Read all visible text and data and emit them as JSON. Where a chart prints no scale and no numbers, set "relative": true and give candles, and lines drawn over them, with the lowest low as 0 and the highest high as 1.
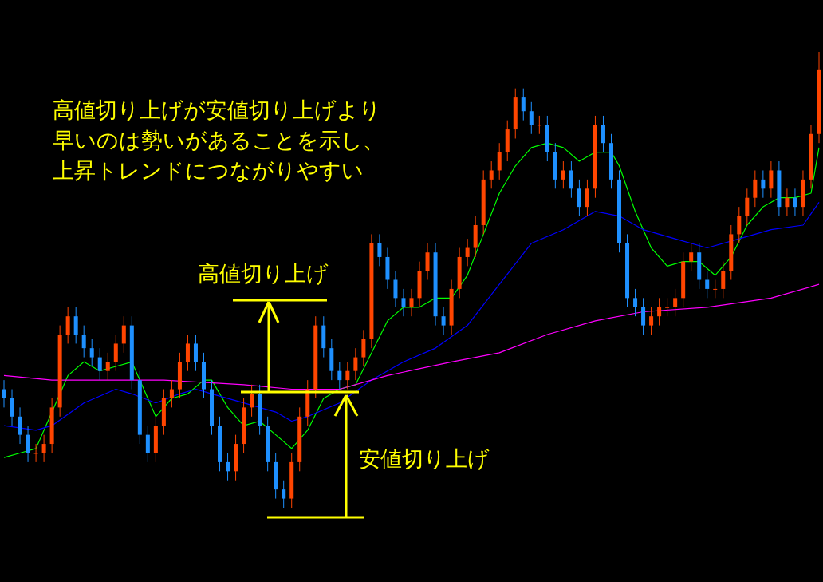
{
  "chart_data": {
    "type": "candlestick",
    "relative": true,
    "categories": [
      null,
      null,
      null,
      null,
      null,
      null,
      null,
      null,
      null,
      null,
      null,
      null,
      null,
      null,
      null,
      null,
      null,
      null,
      null,
      null,
      null,
      null,
      null,
      null,
      null,
      null,
      null,
      null,
      null,
      null,
      null,
      null,
      null,
      null,
      null,
      null,
      null,
      null,
      null,
      null,
      null,
      null,
      null,
      null,
      null,
      null,
      null,
      null,
      null,
      null,
      null,
      null,
      null,
      null,
      null,
      null,
      null,
      null,
      null,
      null,
      null,
      null,
      null,
      null,
      null,
      null,
      null,
      null,
      null,
      null,
      null,
      null,
      null,
      null,
      null,
      null,
      null,
      null,
      null,
      null,
      null,
      null,
      null,
      null,
      null,
      null,
      null,
      null,
      null,
      null,
      null,
      null,
      null,
      null,
      null,
      null,
      null,
      null,
      null,
      null,
      null,
      null,
      null
    ],
    "ohlc": [
      [
        0.26,
        0.28,
        0.22,
        0.24
      ],
      [
        0.24,
        0.26,
        0.18,
        0.2
      ],
      [
        0.2,
        0.22,
        0.14,
        0.16
      ],
      [
        0.16,
        0.18,
        0.1,
        0.12
      ],
      [
        0.12,
        0.14,
        0.1,
        0.12
      ],
      [
        0.12,
        0.16,
        0.1,
        0.14
      ],
      [
        0.14,
        0.24,
        0.12,
        0.22
      ],
      [
        0.22,
        0.4,
        0.2,
        0.38
      ],
      [
        0.38,
        0.44,
        0.36,
        0.42
      ],
      [
        0.42,
        0.44,
        0.36,
        0.38
      ],
      [
        0.38,
        0.4,
        0.33,
        0.35
      ],
      [
        0.35,
        0.37,
        0.31,
        0.33
      ],
      [
        0.33,
        0.35,
        0.28,
        0.3
      ],
      [
        0.3,
        0.34,
        0.28,
        0.32
      ],
      [
        0.32,
        0.38,
        0.3,
        0.36
      ],
      [
        0.36,
        0.42,
        0.34,
        0.4
      ],
      [
        0.4,
        0.42,
        0.26,
        0.28
      ],
      [
        0.28,
        0.3,
        0.14,
        0.16
      ],
      [
        0.16,
        0.18,
        0.1,
        0.12
      ],
      [
        0.12,
        0.2,
        0.1,
        0.18
      ],
      [
        0.18,
        0.26,
        0.16,
        0.24
      ],
      [
        0.24,
        0.28,
        0.22,
        0.26
      ],
      [
        0.26,
        0.34,
        0.24,
        0.32
      ],
      [
        0.32,
        0.38,
        0.3,
        0.36
      ],
      [
        0.36,
        0.38,
        0.3,
        0.32
      ],
      [
        0.32,
        0.34,
        0.24,
        0.26
      ],
      [
        0.26,
        0.28,
        0.16,
        0.18
      ],
      [
        0.18,
        0.2,
        0.08,
        0.1
      ],
      [
        0.1,
        0.12,
        0.06,
        0.08
      ],
      [
        0.08,
        0.16,
        0.06,
        0.14
      ],
      [
        0.14,
        0.24,
        0.12,
        0.22
      ],
      [
        0.22,
        0.27,
        0.2,
        0.25
      ],
      [
        0.25,
        0.27,
        0.16,
        0.18
      ],
      [
        0.18,
        0.2,
        0.08,
        0.1
      ],
      [
        0.1,
        0.12,
        0.02,
        0.04
      ],
      [
        0.04,
        0.06,
        0.0,
        0.02
      ],
      [
        0.02,
        0.12,
        0.0,
        0.1
      ],
      [
        0.1,
        0.22,
        0.08,
        0.2
      ],
      [
        0.2,
        0.28,
        0.18,
        0.26
      ],
      [
        0.26,
        0.42,
        0.24,
        0.4
      ],
      [
        0.4,
        0.42,
        0.33,
        0.35
      ],
      [
        0.35,
        0.37,
        0.28,
        0.3
      ],
      [
        0.3,
        0.32,
        0.26,
        0.28
      ],
      [
        0.28,
        0.32,
        0.26,
        0.3
      ],
      [
        0.3,
        0.35,
        0.28,
        0.33
      ],
      [
        0.33,
        0.39,
        0.31,
        0.37
      ],
      [
        0.37,
        0.6,
        0.35,
        0.58
      ],
      [
        0.58,
        0.6,
        0.53,
        0.55
      ],
      [
        0.55,
        0.57,
        0.48,
        0.5
      ],
      [
        0.5,
        0.52,
        0.44,
        0.46
      ],
      [
        0.46,
        0.48,
        0.42,
        0.44
      ],
      [
        0.44,
        0.48,
        0.42,
        0.46
      ],
      [
        0.46,
        0.54,
        0.44,
        0.52
      ],
      [
        0.52,
        0.58,
        0.5,
        0.56
      ],
      [
        0.56,
        0.58,
        0.4,
        0.42
      ],
      [
        0.42,
        0.44,
        0.38,
        0.4
      ],
      [
        0.4,
        0.5,
        0.38,
        0.48
      ],
      [
        0.48,
        0.57,
        0.46,
        0.55
      ],
      [
        0.55,
        0.59,
        0.53,
        0.57
      ],
      [
        0.57,
        0.64,
        0.55,
        0.62
      ],
      [
        0.62,
        0.74,
        0.6,
        0.72
      ],
      [
        0.72,
        0.76,
        0.7,
        0.74
      ],
      [
        0.74,
        0.8,
        0.72,
        0.78
      ],
      [
        0.78,
        0.85,
        0.76,
        0.83
      ],
      [
        0.83,
        0.92,
        0.81,
        0.9
      ],
      [
        0.9,
        0.92,
        0.85,
        0.87
      ],
      [
        0.87,
        0.89,
        0.82,
        0.84
      ],
      [
        0.84,
        0.86,
        0.82,
        0.84
      ],
      [
        0.84,
        0.86,
        0.76,
        0.78
      ],
      [
        0.78,
        0.8,
        0.7,
        0.72
      ],
      [
        0.72,
        0.76,
        0.7,
        0.74
      ],
      [
        0.74,
        0.76,
        0.68,
        0.7
      ],
      [
        0.7,
        0.72,
        0.64,
        0.66
      ],
      [
        0.66,
        0.72,
        0.64,
        0.7
      ],
      [
        0.7,
        0.86,
        0.68,
        0.84
      ],
      [
        0.84,
        0.86,
        0.78,
        0.8
      ],
      [
        0.8,
        0.82,
        0.7,
        0.72
      ],
      [
        0.72,
        0.74,
        0.56,
        0.58
      ],
      [
        0.58,
        0.6,
        0.44,
        0.46
      ],
      [
        0.46,
        0.48,
        0.42,
        0.44
      ],
      [
        0.44,
        0.46,
        0.38,
        0.4
      ],
      [
        0.4,
        0.44,
        0.38,
        0.42
      ],
      [
        0.42,
        0.46,
        0.4,
        0.44
      ],
      [
        0.44,
        0.46,
        0.42,
        0.44
      ],
      [
        0.44,
        0.48,
        0.42,
        0.46
      ],
      [
        0.46,
        0.56,
        0.44,
        0.54
      ],
      [
        0.54,
        0.58,
        0.52,
        0.56
      ],
      [
        0.56,
        0.58,
        0.48,
        0.5
      ],
      [
        0.5,
        0.52,
        0.46,
        0.48
      ],
      [
        0.48,
        0.5,
        0.46,
        0.48
      ],
      [
        0.48,
        0.54,
        0.46,
        0.52
      ],
      [
        0.52,
        0.62,
        0.5,
        0.6
      ],
      [
        0.6,
        0.66,
        0.58,
        0.64
      ],
      [
        0.64,
        0.7,
        0.62,
        0.68
      ],
      [
        0.68,
        0.74,
        0.66,
        0.72
      ],
      [
        0.72,
        0.74,
        0.68,
        0.7
      ],
      [
        0.7,
        0.76,
        0.68,
        0.74
      ],
      [
        0.74,
        0.76,
        0.64,
        0.66
      ],
      [
        0.66,
        0.7,
        0.64,
        0.68
      ],
      [
        0.68,
        0.7,
        0.64,
        0.66
      ],
      [
        0.66,
        0.74,
        0.64,
        0.72
      ],
      [
        0.72,
        0.84,
        0.7,
        0.82
      ],
      [
        0.82,
        1.0,
        0.8,
        0.96
      ]
    ],
    "colors": [
      "#1e90ff",
      "#1e90ff",
      "#1e90ff",
      "#1e90ff",
      "#ff4500",
      "#ff4500",
      "#ff4500",
      "#ff4500",
      "#ff4500",
      "#1e90ff",
      "#1e90ff",
      "#1e90ff",
      "#1e90ff",
      "#ff4500",
      "#ff4500",
      "#ff4500",
      "#1e90ff",
      "#1e90ff",
      "#1e90ff",
      "#ff4500",
      "#ff4500",
      "#ff4500",
      "#ff4500",
      "#ff4500",
      "#1e90ff",
      "#1e90ff",
      "#1e90ff",
      "#1e90ff",
      "#1e90ff",
      "#ff4500",
      "#ff4500",
      "#ff4500",
      "#1e90ff",
      "#1e90ff",
      "#1e90ff",
      "#1e90ff",
      "#ff4500",
      "#ff4500",
      "#ff4500",
      "#ff4500",
      "#1e90ff",
      "#1e90ff",
      "#1e90ff",
      "#ff4500",
      "#ff4500",
      "#ff4500",
      "#ff4500",
      "#1e90ff",
      "#1e90ff",
      "#1e90ff",
      "#1e90ff",
      "#ff4500",
      "#ff4500",
      "#ff4500",
      "#1e90ff",
      "#1e90ff",
      "#ff4500",
      "#ff4500",
      "#ff4500",
      "#ff4500",
      "#ff4500",
      "#ff4500",
      "#ff4500",
      "#ff4500",
      "#ff4500",
      "#1e90ff",
      "#1e90ff",
      "#ff4500",
      "#1e90ff",
      "#1e90ff",
      "#ff4500",
      "#1e90ff",
      "#1e90ff",
      "#ff4500",
      "#ff4500",
      "#1e90ff",
      "#1e90ff",
      "#1e90ff",
      "#1e90ff",
      "#1e90ff",
      "#1e90ff",
      "#ff4500",
      "#ff4500",
      "#ff4500",
      "#ff4500",
      "#ff4500",
      "#ff4500",
      "#1e90ff",
      "#1e90ff",
      "#ff4500",
      "#ff4500",
      "#ff4500",
      "#ff4500",
      "#ff4500",
      "#ff4500",
      "#1e90ff",
      "#ff4500",
      "#1e90ff",
      "#ff4500",
      "#1e90ff",
      "#ff4500",
      "#ff4500",
      "#ff4500"
    ],
    "series": [
      {
        "type": "line",
        "color": "#00ff00",
        "values": [
          0.11,
          null,
          0.12,
          null,
          0.13,
          null,
          null,
          null,
          0.29,
          null,
          0.32,
          null,
          0.3,
          null,
          0.31,
          null,
          0.32,
          null,
          null,
          0.2,
          null,
          0.24,
          null,
          0.25,
          null,
          0.28,
          0.28,
          null,
          0.22,
          null,
          0.18,
          null,
          0.19,
          null,
          0.16,
          null,
          0.13,
          null,
          0.17,
          null,
          0.24,
          null,
          0.26,
          null,
          0.27,
          null,
          0.34,
          null,
          0.41,
          null,
          0.44,
          null,
          0.44,
          null,
          0.46,
          null,
          0.46,
          null,
          0.51,
          null,
          0.6,
          null,
          0.69,
          null,
          0.75,
          null,
          0.79,
          null,
          0.8,
          null,
          0.79,
          null,
          0.76,
          null,
          0.78,
          null,
          0.78,
          0.75,
          null,
          0.65,
          null,
          0.57,
          null,
          0.53,
          null,
          0.54,
          null,
          0.54,
          null,
          0.51,
          null,
          0.55,
          null,
          0.62,
          null,
          0.66,
          null,
          0.68,
          null,
          0.68,
          null,
          0.69,
          0.79
        ]
      },
      {
        "type": "line",
        "color": "#0000ff",
        "values": [
          0.18,
          null,
          null,
          null,
          0.17,
          null,
          0.18,
          null,
          null,
          null,
          0.23,
          null,
          null,
          null,
          0.26,
          null,
          0.25,
          null,
          null,
          0.23,
          null,
          null,
          0.25,
          null,
          0.26,
          null,
          0.25,
          null,
          null,
          null,
          0.23,
          null,
          null,
          null,
          0.21,
          null,
          0.19,
          null,
          0.2,
          null,
          null,
          null,
          0.23,
          null,
          null,
          null,
          0.28,
          null,
          null,
          null,
          0.32,
          null,
          null,
          null,
          0.35,
          null,
          null,
          null,
          0.4,
          null,
          null,
          null,
          0.49,
          null,
          null,
          null,
          0.58,
          null,
          null,
          null,
          0.61,
          null,
          null,
          null,
          0.65,
          null,
          null,
          0.64,
          null,
          null,
          0.61,
          null,
          null,
          null,
          0.59,
          null,
          null,
          null,
          0.57,
          null,
          null,
          null,
          0.59,
          null,
          null,
          null,
          0.61,
          null,
          null,
          null,
          0.62,
          null,
          0.67
        ]
      },
      {
        "type": "line",
        "color": "#ff00ff",
        "values": [
          0.29,
          null,
          null,
          null,
          null,
          null,
          0.28,
          null,
          null,
          null,
          0.28,
          null,
          null,
          null,
          null,
          null,
          null,
          null,
          null,
          null,
          0.28,
          null,
          null,
          null,
          null,
          null,
          null,
          null,
          null,
          null,
          0.27,
          null,
          null,
          null,
          null,
          null,
          0.26,
          null,
          null,
          null,
          null,
          null,
          0.26,
          null,
          null,
          null,
          null,
          null,
          0.29,
          null,
          null,
          null,
          null,
          null,
          null,
          null,
          0.32,
          null,
          null,
          null,
          null,
          null,
          0.34,
          null,
          null,
          null,
          null,
          null,
          0.38,
          null,
          null,
          null,
          null,
          null,
          0.41,
          null,
          null,
          null,
          null,
          null,
          0.43,
          null,
          null,
          null,
          null,
          null,
          null,
          null,
          0.44,
          null,
          null,
          null,
          null,
          null,
          null,
          null,
          0.46,
          null,
          null,
          null,
          null,
          null,
          0.49
        ]
      }
    ],
    "annotations": [
      "高値切り上げが安値切り上げより",
      "早いのは勢いがあることを示し、",
      "上昇トレンドにつながりやすい",
      "高値切り上げ",
      "安値切り上げ"
    ]
  }
}
